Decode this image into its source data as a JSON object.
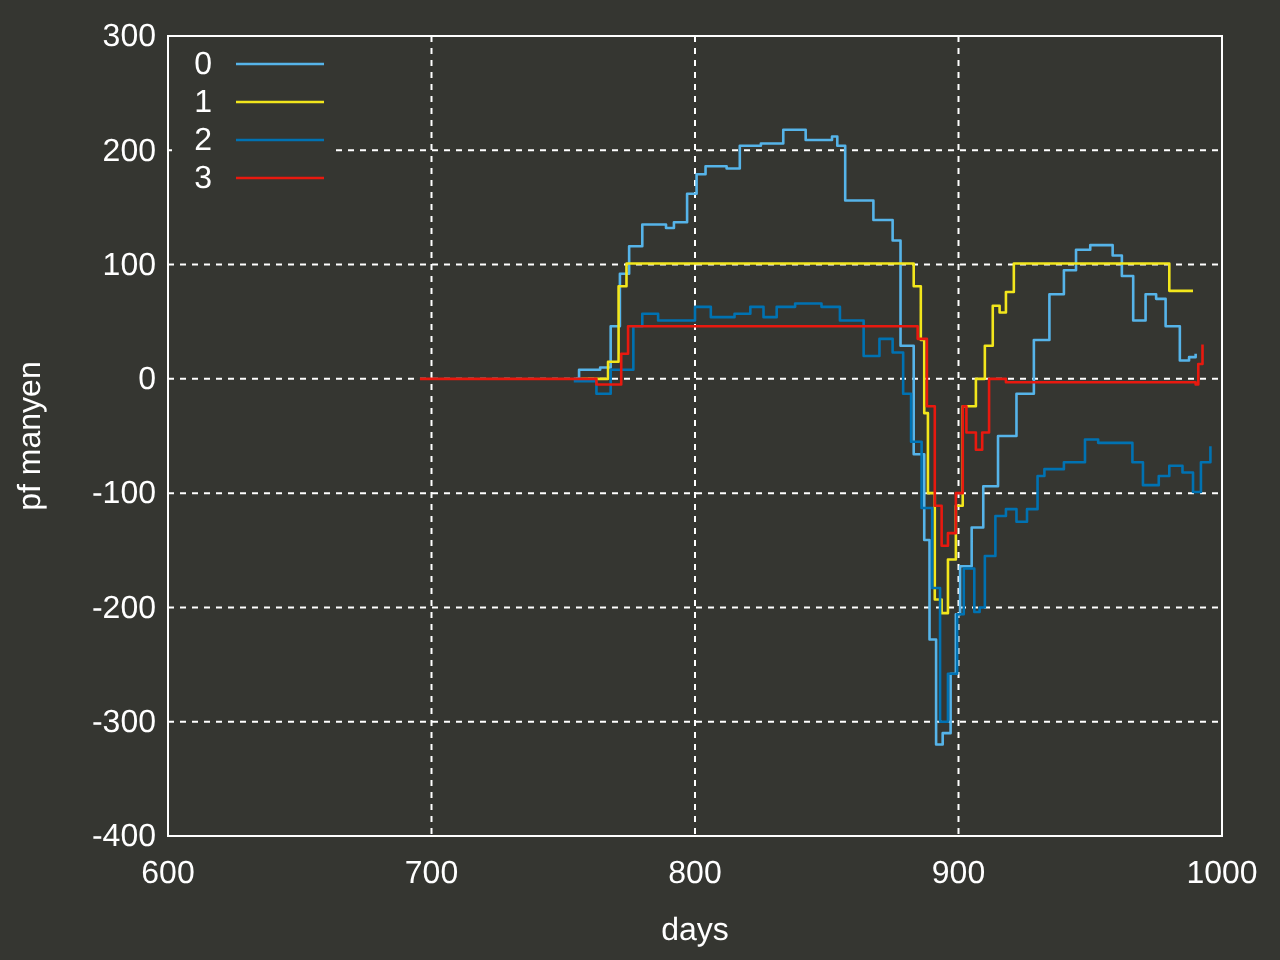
{
  "chart_data": {
    "type": "step",
    "xlabel": "days",
    "ylabel": "pf manyen",
    "xlim": [
      600,
      1000
    ],
    "ylim": [
      -400,
      300
    ],
    "xticks": [
      600,
      700,
      800,
      900,
      1000
    ],
    "yticks": [
      -400,
      -300,
      -200,
      -100,
      0,
      100,
      200,
      300
    ],
    "grid": true,
    "legend": "top left",
    "line_style": "solid",
    "marker": "none",
    "series": [
      {
        "name": "0",
        "color": "#56b4e9",
        "x": [
          754,
          756,
          764,
          768,
          771.5,
          775,
          780,
          789,
          792,
          797,
          800.6,
          804,
          812,
          817,
          825,
          833.5,
          842,
          852,
          854,
          857,
          867.7,
          875,
          878,
          883,
          887,
          889,
          891.5,
          894,
          897,
          899,
          900.6,
          905,
          909.4,
          915,
          922,
          928.6,
          934.5,
          940,
          944.6,
          950,
          958.5,
          962,
          966.3,
          971,
          975,
          978.6,
          984,
          987.5,
          990
        ],
        "values": [
          0,
          8,
          10,
          46,
          92,
          116,
          135,
          132,
          137,
          162,
          179,
          186,
          184,
          204,
          206,
          218,
          209,
          212,
          204,
          156,
          139,
          121,
          29,
          -66,
          -141,
          -228,
          -320,
          -310,
          -258,
          -206,
          -164,
          -130,
          -94,
          -50,
          -13,
          34,
          74,
          95,
          113,
          117,
          108,
          90,
          51,
          74,
          70,
          46,
          16,
          19,
          22
        ]
      },
      {
        "name": "1",
        "color": "#f2e61c",
        "x": [
          757,
          762,
          767,
          771,
          774,
          880,
          883,
          885.7,
          887,
          888.4,
          891,
          893.6,
          896,
          899,
          901.6,
          906.6,
          910,
          913,
          915.6,
          918,
          921,
          977.6,
          980,
          989
        ],
        "values": [
          0,
          0,
          15,
          81,
          101,
          101,
          81,
          34,
          -30,
          -100,
          -193,
          -205,
          -158,
          -111,
          -24,
          0,
          29,
          64,
          58,
          76,
          101,
          101,
          77,
          77
        ]
      },
      {
        "name": "2",
        "color": "#0072b2",
        "x": [
          754,
          762.6,
          768,
          776.6,
          780,
          786,
          793.6,
          800,
          806,
          815,
          821,
          826,
          831,
          838,
          848,
          855,
          864,
          870,
          875,
          879,
          882,
          886,
          890,
          893,
          896,
          899.5,
          902,
          906,
          908,
          910,
          914,
          918,
          922,
          926,
          930,
          932.6,
          940,
          948,
          953,
          959.5,
          966,
          970,
          976,
          980,
          985,
          989,
          992,
          995.6
        ],
        "values": [
          -2,
          -13,
          8,
          46,
          57,
          51,
          51,
          63,
          54,
          57,
          63,
          54,
          63,
          66,
          63,
          51,
          20,
          35,
          23,
          -13,
          -55,
          -113,
          -183,
          -300,
          -258,
          -206,
          -166,
          -204,
          -200,
          -155,
          -120,
          -114,
          -125,
          -114,
          -85,
          -79,
          -73,
          -53,
          -56,
          -56,
          -73,
          -93,
          -85,
          -76,
          -82,
          -99,
          -73,
          -59
        ]
      },
      {
        "name": "3",
        "color": "#e8190f",
        "x": [
          695.6,
          760,
          762.6,
          768,
          772,
          774.6,
          880,
          884.5,
          888,
          891,
          893.6,
          896,
          899,
          901.6,
          903,
          906.6,
          909,
          911.6,
          918,
          977.6,
          990,
          991,
          992.6
        ],
        "values": [
          0,
          0,
          -5,
          -5,
          22,
          46,
          46,
          35,
          -24,
          -111,
          -146,
          -135,
          -100,
          -24,
          -47,
          -62,
          -47,
          0,
          -3,
          -3,
          -5,
          13,
          30
        ]
      }
    ]
  }
}
